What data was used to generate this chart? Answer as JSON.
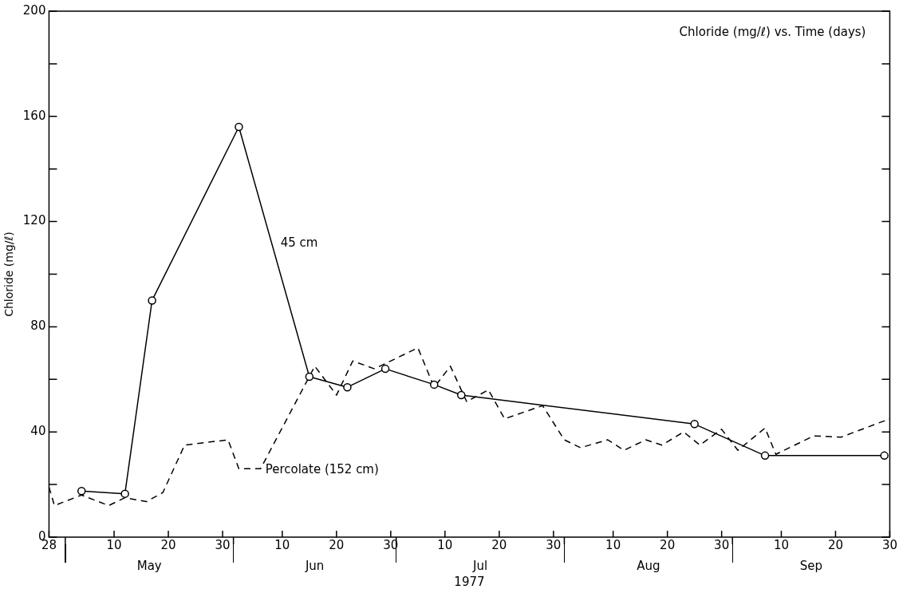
{
  "chart_data": {
    "type": "line",
    "xlabel": "1977",
    "ylabel": "Chloride (mg/ℓ)",
    "annotations": [
      "Chloride (mg/ℓ) vs. Time (days)",
      "May",
      "Jun",
      "Jul",
      "Aug",
      "Sep"
    ],
    "xlim": [
      "1977-04-28",
      "1977-09-30"
    ],
    "xticks": [
      {
        "value": "1977-04-28",
        "label": "28"
      },
      {
        "value": "1977-05-01",
        "label": null
      },
      {
        "value": "1977-05-10",
        "label": "10"
      },
      {
        "value": "1977-05-20",
        "label": "20"
      },
      {
        "value": "1977-05-30",
        "label": "30"
      },
      {
        "value": "1977-06-01",
        "label": null
      },
      {
        "value": "1977-06-10",
        "label": "10"
      },
      {
        "value": "1977-06-20",
        "label": "20"
      },
      {
        "value": "1977-06-30",
        "label": "30"
      },
      {
        "value": "1977-07-01",
        "label": null
      },
      {
        "value": "1977-07-10",
        "label": "10"
      },
      {
        "value": "1977-07-20",
        "label": "20"
      },
      {
        "value": "1977-07-30",
        "label": "30"
      },
      {
        "value": "1977-08-01",
        "label": null
      },
      {
        "value": "1977-08-10",
        "label": "10"
      },
      {
        "value": "1977-08-20",
        "label": "20"
      },
      {
        "value": "1977-08-30",
        "label": "30"
      },
      {
        "value": "1977-09-01",
        "label": null
      },
      {
        "value": "1977-09-10",
        "label": "10"
      },
      {
        "value": "1977-09-20",
        "label": "20"
      },
      {
        "value": "1977-09-30",
        "label": "30"
      }
    ],
    "ylim": [
      0,
      200
    ],
    "yticks": [
      0,
      {
        "value": 20,
        "label": null
      },
      40,
      {
        "value": 60,
        "label": null
      },
      80,
      {
        "value": 100,
        "label": null
      },
      120,
      {
        "value": 140,
        "label": null
      },
      160,
      {
        "value": 180,
        "label": null
      },
      200
    ],
    "grid": false,
    "legend": false,
    "series": [
      {
        "name": "45 cm",
        "color": "#000000",
        "marker": "circle",
        "line_style": "solid",
        "x": [
          "1977-05-04",
          "1977-05-12",
          "1977-05-17",
          "1977-06-02",
          "1977-06-15",
          "1977-06-22",
          "1977-06-29",
          "1977-07-08",
          "1977-07-13",
          "1977-08-25",
          "1977-09-07",
          "1977-09-29"
        ],
        "values": [
          17.5,
          16.5,
          90,
          156,
          61,
          57,
          64,
          58,
          54,
          43,
          31,
          31
        ]
      },
      {
        "name": "Percolate (152 cm)",
        "color": "#000000",
        "marker": "none",
        "line_style": "dashed",
        "x": [
          "1977-04-28",
          "1977-04-29",
          "1977-05-04",
          "1977-05-09",
          "1977-05-12",
          "1977-05-16",
          "1977-05-19",
          "1977-05-23",
          "1977-05-31",
          "1977-06-02",
          "1977-06-06",
          "1977-06-16",
          "1977-06-20",
          "1977-06-23",
          "1977-06-27",
          "1977-07-05",
          "1977-07-08",
          "1977-07-11",
          "1977-07-14",
          "1977-07-18",
          "1977-07-21",
          "1977-07-28",
          "1977-08-01",
          "1977-08-04",
          "1977-08-09",
          "1977-08-12",
          "1977-08-16",
          "1977-08-19",
          "1977-08-23",
          "1977-08-26",
          "1977-08-30",
          "1977-09-02",
          "1977-09-07",
          "1977-09-09",
          "1977-09-16",
          "1977-09-21",
          "1977-09-30"
        ],
        "values": [
          19,
          12,
          16,
          12,
          15,
          13.5,
          17,
          35,
          37,
          26,
          26,
          65,
          54,
          67,
          64,
          72,
          57,
          65,
          51.5,
          56,
          45,
          50,
          37,
          34,
          37,
          33,
          37,
          35,
          40,
          35,
          41,
          33,
          41.5,
          31.5,
          38.5,
          38,
          45
        ]
      }
    ]
  }
}
